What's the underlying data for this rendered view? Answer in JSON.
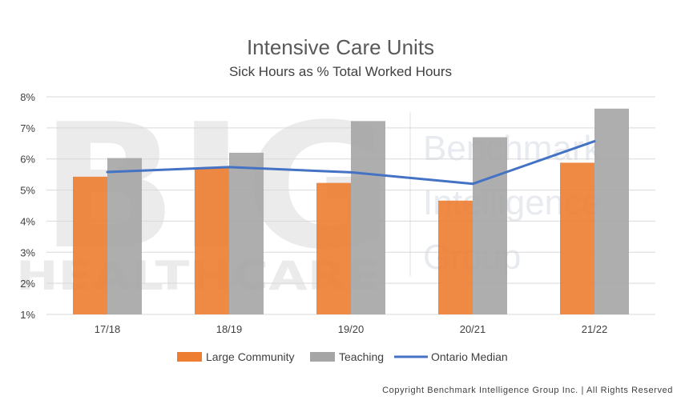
{
  "watermark": {
    "big": "BIG",
    "healthcare": "HEALTHCARE",
    "group_lines": [
      "Benchmark",
      "Intelligence",
      "Group"
    ]
  },
  "copyright": "Copyright Benchmark Intelligence Group Inc. | All Rights Reserved",
  "colors": {
    "large_community": "#ed7d31",
    "teaching": "#a5a5a5",
    "ontario_median": "#4472c4",
    "grid": "#d9d9d9"
  },
  "chart_data": {
    "type": "bar",
    "title": "Intensive Care Units",
    "subtitle": "Sick Hours as % Total Worked Hours",
    "xlabel": "",
    "ylabel": "",
    "categories": [
      "17/18",
      "18/19",
      "19/20",
      "20/21",
      "21/22"
    ],
    "ylim": [
      1,
      8
    ],
    "y_ticks": [
      1,
      2,
      3,
      4,
      5,
      6,
      7,
      8
    ],
    "y_tick_labels": [
      "1%",
      "2%",
      "3%",
      "4%",
      "5%",
      "6%",
      "7%",
      "8%"
    ],
    "grid": true,
    "legend_position": "bottom",
    "series": [
      {
        "name": "Large Community",
        "kind": "bar",
        "values": [
          5.43,
          5.72,
          5.23,
          4.66,
          5.88
        ]
      },
      {
        "name": "Teaching",
        "kind": "bar",
        "values": [
          6.03,
          6.2,
          7.22,
          6.7,
          7.62
        ]
      },
      {
        "name": "Ontario Median",
        "kind": "line",
        "values": [
          5.58,
          5.74,
          5.57,
          5.2,
          6.57
        ]
      }
    ]
  }
}
